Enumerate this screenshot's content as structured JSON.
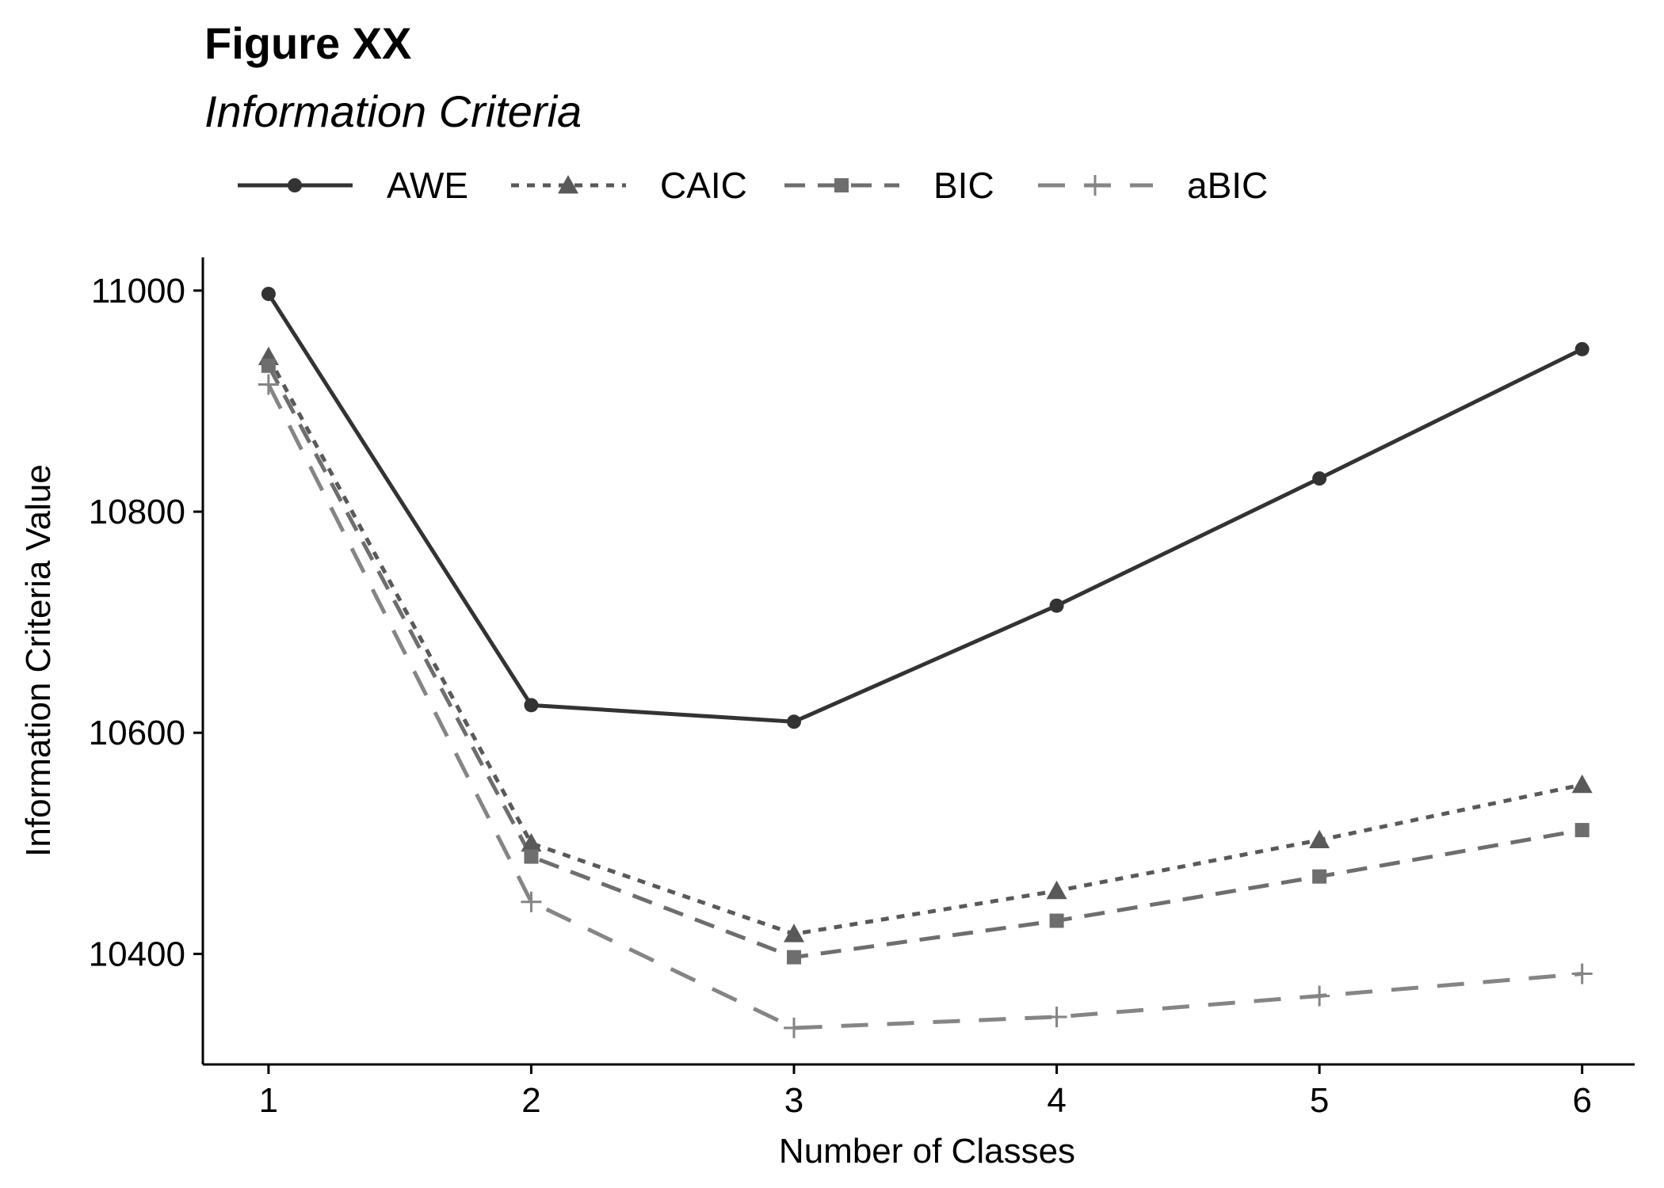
{
  "figure": {
    "title": "Figure XX",
    "subtitle": "Information Criteria"
  },
  "chart_data": {
    "type": "line",
    "xlabel": "Number of Classes",
    "ylabel": "Information Criteria Value",
    "x": [
      1,
      2,
      3,
      4,
      5,
      6
    ],
    "x_ticks": [
      "1",
      "2",
      "3",
      "4",
      "5",
      "6"
    ],
    "y_ticks": [
      10400,
      10600,
      10800,
      11000
    ],
    "ylim": [
      10300,
      11030
    ],
    "xlim": [
      0.75,
      6.2
    ],
    "grid": false,
    "legend_position": "top",
    "series": [
      {
        "name": "AWE",
        "values": [
          10997,
          10625,
          10610,
          10715,
          10830,
          10947
        ],
        "color": "#333333",
        "dash": "solid",
        "marker": "circle"
      },
      {
        "name": "CAIC",
        "values": [
          10940,
          10500,
          10418,
          10457,
          10503,
          10553
        ],
        "color": "#595959",
        "dash": "dotted",
        "marker": "triangle"
      },
      {
        "name": "BIC",
        "values": [
          10932,
          10488,
          10397,
          10430,
          10470,
          10512
        ],
        "color": "#6e6e6e",
        "dash": "dashed",
        "marker": "square"
      },
      {
        "name": "aBIC",
        "values": [
          10915,
          10447,
          10333,
          10343,
          10362,
          10382
        ],
        "color": "#858585",
        "dash": "longdash",
        "marker": "plus"
      }
    ]
  }
}
